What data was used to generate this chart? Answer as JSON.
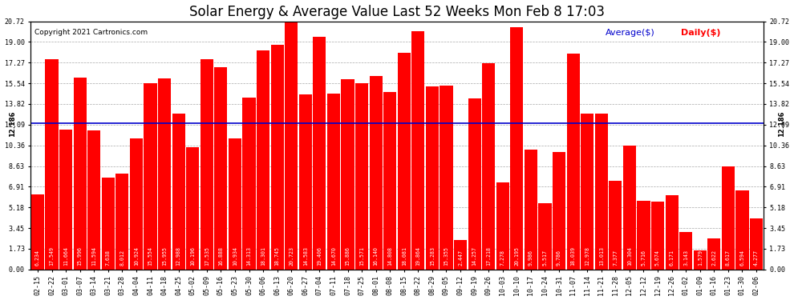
{
  "title": "Solar Energy & Average Value Last 52 Weeks Mon Feb 8 17:03",
  "copyright": "Copyright 2021 Cartronics.com",
  "average_label": "Average($)",
  "daily_label": "Daily($)",
  "average_value": 12.186,
  "bar_color": "#ff0000",
  "average_line_color": "#0000cc",
  "categories": [
    "02-15",
    "02-22",
    "03-01",
    "03-07",
    "03-14",
    "03-21",
    "03-28",
    "04-04",
    "04-11",
    "04-18",
    "04-25",
    "05-02",
    "05-09",
    "05-16",
    "05-23",
    "05-30",
    "06-06",
    "06-13",
    "06-20",
    "06-27",
    "07-04",
    "07-11",
    "07-18",
    "07-25",
    "08-01",
    "08-08",
    "08-15",
    "08-22",
    "08-29",
    "09-05",
    "09-12",
    "09-19",
    "09-26",
    "10-03",
    "10-10",
    "10-17",
    "10-24",
    "10-31",
    "11-07",
    "11-14",
    "11-21",
    "11-28",
    "12-05",
    "12-12",
    "12-19",
    "12-26",
    "01-02",
    "01-09",
    "01-16",
    "01-23",
    "01-30",
    "02-06"
  ],
  "values": [
    6.234,
    17.549,
    11.664,
    15.996,
    11.594,
    7.638,
    8.012,
    10.924,
    15.554,
    15.955,
    12.988,
    10.196,
    17.535,
    16.888,
    10.934,
    14.313,
    18.301,
    18.745,
    20.723,
    14.583,
    19.406,
    14.67,
    15.886,
    15.571,
    16.14,
    14.808,
    18.081,
    19.864,
    15.283,
    15.355,
    2.447,
    14.257,
    17.218,
    7.278,
    20.195,
    9.986,
    5.517,
    9.786,
    18.039,
    12.978,
    13.013,
    7.377,
    10.304,
    5.716,
    5.674,
    6.171,
    3.143,
    1.579,
    2.622,
    8.617,
    6.594,
    4.277
  ],
  "ylim_max": 20.72,
  "yticks": [
    0.0,
    1.73,
    3.45,
    5.18,
    6.91,
    8.63,
    10.36,
    12.09,
    13.82,
    15.54,
    17.27,
    19.0,
    20.72
  ],
  "background_color": "#ffffff",
  "grid_color": "#aaaaaa",
  "title_fontsize": 12,
  "tick_fontsize": 6,
  "bar_label_fontsize": 4.8,
  "avg_annotation_fontsize": 6,
  "legend_fontsize": 8,
  "copyright_fontsize": 6.5
}
